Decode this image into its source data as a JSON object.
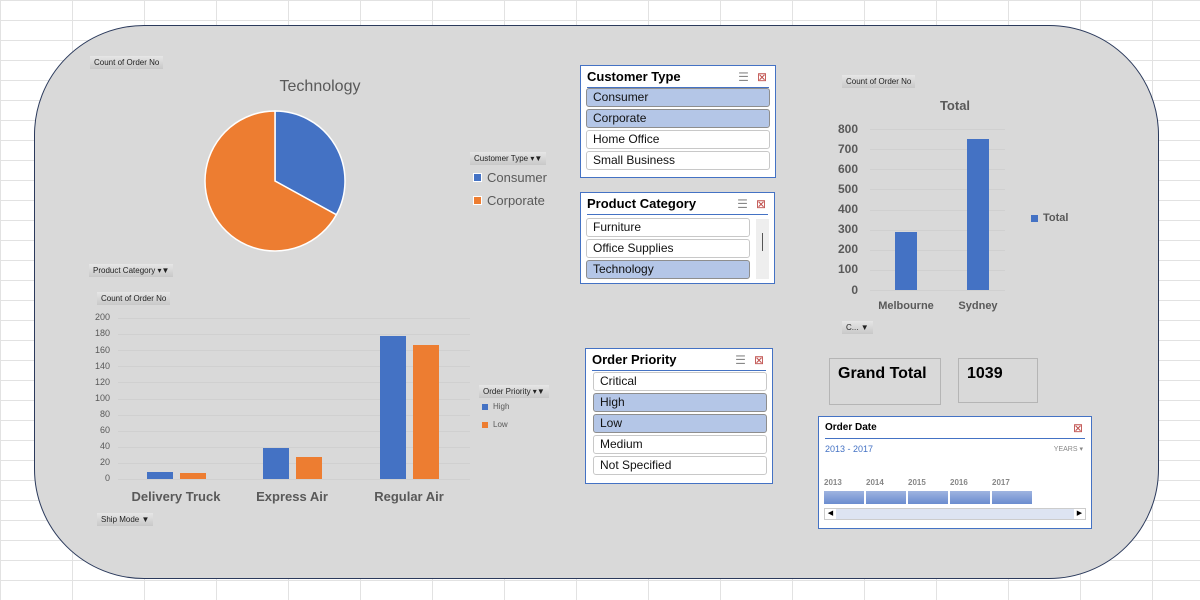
{
  "colors": {
    "blue": "#4472c4",
    "orange": "#ed7d31",
    "selected": "#b4c6e7"
  },
  "pie": {
    "field_button": "Count of Order No",
    "legend_button": "Customer Type",
    "chart_data": {
      "type": "pie",
      "title": "Technology",
      "labels": [
        "Consumer",
        "Corporate"
      ],
      "values": [
        33,
        67
      ],
      "unit": "percent (estimated)"
    }
  },
  "bar1": {
    "filter_button": "Product Category",
    "field_button": "Count of Order No",
    "legend_button": "Order Priority",
    "axis_button": "Ship Mode",
    "chart_data": {
      "type": "bar",
      "categories": [
        "Delivery Truck",
        "Express Air",
        "Regular Air"
      ],
      "series": [
        {
          "name": "High",
          "values": [
            9,
            38,
            178
          ]
        },
        {
          "name": "Low",
          "values": [
            8,
            27,
            167
          ]
        }
      ],
      "ylim": [
        0,
        200
      ],
      "yticks": [
        0,
        20,
        40,
        60,
        80,
        100,
        120,
        140,
        160,
        180,
        200
      ],
      "legend": "right"
    }
  },
  "bar2": {
    "field_button": "Count of Order No",
    "axis_button": "C...",
    "chart_data": {
      "type": "bar",
      "title": "Total",
      "categories": [
        "Melbourne",
        "Sydney"
      ],
      "series": [
        {
          "name": "Total",
          "values": [
            289,
            750
          ]
        }
      ],
      "ylim": [
        0,
        800
      ],
      "yticks": [
        0,
        100,
        200,
        300,
        400,
        500,
        600,
        700,
        800
      ],
      "legend": "right"
    }
  },
  "slicers": {
    "customer_type": {
      "title": "Customer Type",
      "items": [
        {
          "label": "Consumer",
          "selected": true
        },
        {
          "label": "Corporate",
          "selected": true
        },
        {
          "label": "Home Office",
          "selected": false
        },
        {
          "label": "Small Business",
          "selected": false
        }
      ]
    },
    "product_category": {
      "title": "Product Category",
      "items": [
        {
          "label": "Furniture",
          "selected": false
        },
        {
          "label": "Office Supplies",
          "selected": false
        },
        {
          "label": "Technology",
          "selected": true
        }
      ]
    },
    "order_priority": {
      "title": "Order Priority",
      "items": [
        {
          "label": "Critical",
          "selected": false
        },
        {
          "label": "High",
          "selected": true
        },
        {
          "label": "Low",
          "selected": true
        },
        {
          "label": "Medium",
          "selected": false
        },
        {
          "label": "Not Specified",
          "selected": false
        }
      ]
    }
  },
  "timeline": {
    "title": "Order Date",
    "range": "2013 - 2017",
    "level": "YEARS",
    "years": [
      "2013",
      "2014",
      "2015",
      "2016",
      "2017"
    ]
  },
  "grand_total": {
    "label": "Grand Total",
    "value": "1039"
  }
}
